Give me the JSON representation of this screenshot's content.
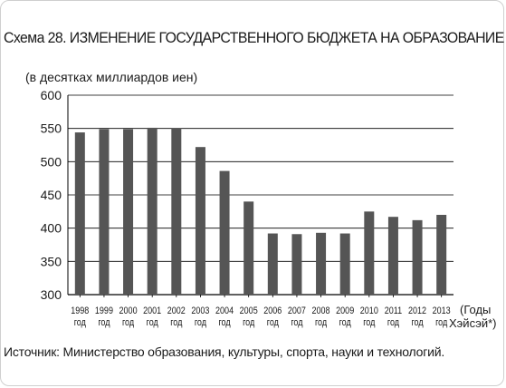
{
  "title": "Схема 28. ИЗМЕНЕНИЕ ГОСУДАРСТВЕННОГО БЮДЖЕТА НА ОБРАЗОВАНИЕ",
  "source": "Источник: Министерство образования, культуры, спорта, науки и технологий.",
  "colors": {
    "bar": "#555555",
    "frame": "#cfcfcf",
    "axis": "#000000"
  },
  "chart_data": {
    "type": "bar",
    "ylabel": "(в десятках миллиардов иен)",
    "xlabel_line1": "(Годы",
    "xlabel_line2": "Хэйсэй*)",
    "year_suffix": "год",
    "categories": [
      "1998",
      "1999",
      "2000",
      "2001",
      "2002",
      "2003",
      "2004",
      "2005",
      "2006",
      "2007",
      "2008",
      "2009",
      "2010",
      "2011",
      "2012",
      "2013"
    ],
    "values": [
      544,
      549,
      549,
      551,
      550,
      522,
      486,
      440,
      392,
      391,
      393,
      392,
      425,
      417,
      412,
      420
    ],
    "ylim": [
      300,
      600
    ],
    "yticks": [
      300,
      350,
      400,
      450,
      500,
      550,
      600
    ],
    "grid": "horizontal"
  }
}
